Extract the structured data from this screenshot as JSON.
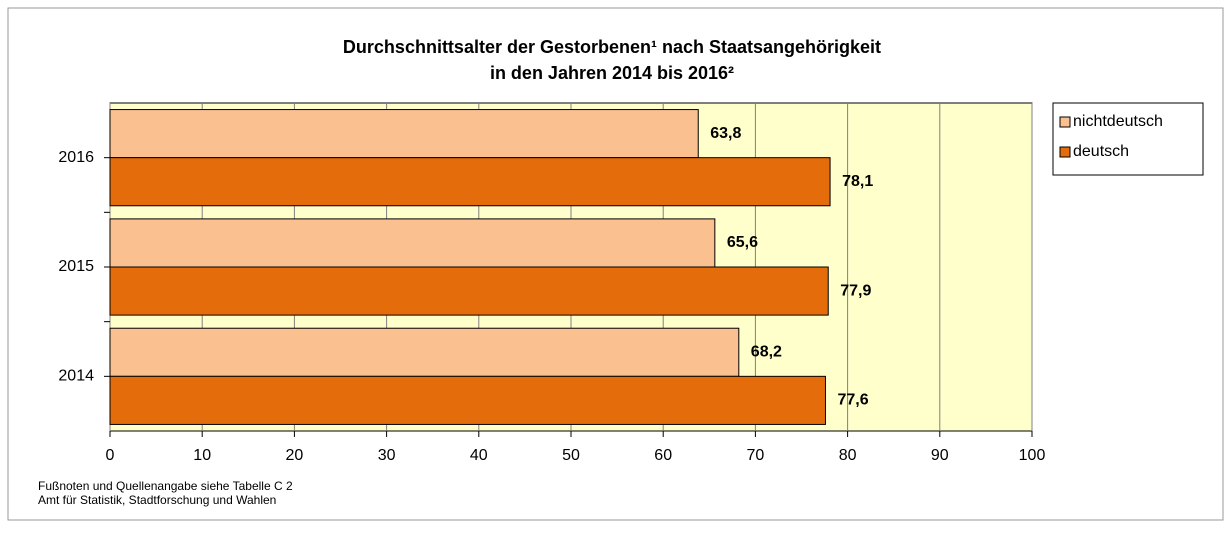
{
  "chart_data": {
    "type": "hbar",
    "title": [
      "Durchschnittsalter der Gestorbenen¹ nach Staatsangehörigkeit",
      "in den Jahren 2014 bis 2016²"
    ],
    "categories": [
      "2016",
      "2015",
      "2014"
    ],
    "series": [
      {
        "name": "nichtdeutsch",
        "color": "#fac090",
        "values": [
          63.8,
          65.6,
          68.2
        ],
        "value_labels": [
          "63,8",
          "65,6",
          "68,2"
        ]
      },
      {
        "name": "deutsch",
        "color": "#e46c0a",
        "values": [
          78.1,
          77.9,
          77.6
        ],
        "value_labels": [
          "78,1",
          "77,9",
          "77,6"
        ]
      }
    ],
    "xlim": [
      0,
      100
    ],
    "xticks": [
      0,
      10,
      20,
      30,
      40,
      50,
      60,
      70,
      80,
      90,
      100
    ],
    "grid": true,
    "legend": "right",
    "footnotes": [
      "Fußnoten und Quellenangabe siehe Tabelle C 2",
      "Amt für Statistik, Stadtforschung und Wahlen"
    ]
  }
}
